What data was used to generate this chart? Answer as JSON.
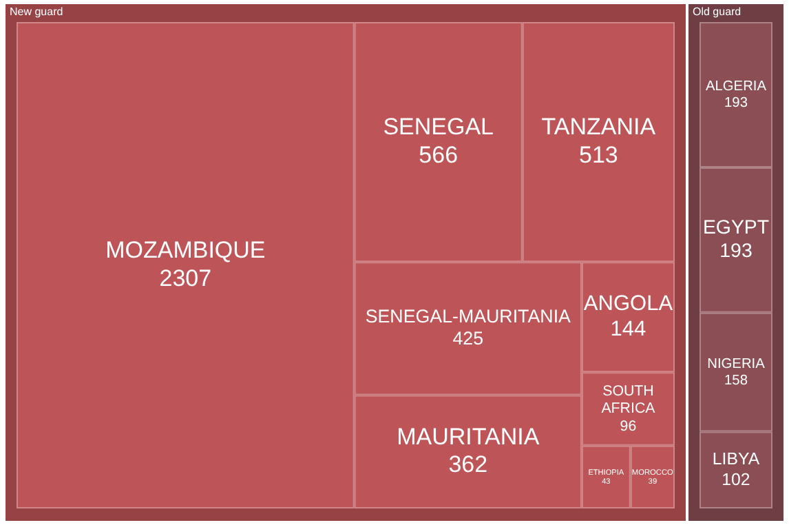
{
  "chart_data": [
    {
      "type": "other",
      "title": "New guard",
      "color": "#bd5457",
      "data_labels": true,
      "categories": [
        "MOZAMBIQUE",
        "SENEGAL",
        "TANZANIA",
        "SENEGAL-MAURITANIA",
        "MAURITANIA",
        "ANGOLA",
        "SOUTH AFRICA",
        "ETHIOPIA",
        "MOROCCO"
      ],
      "values": [
        2307,
        566,
        513,
        425,
        362,
        144,
        96,
        43,
        39
      ]
    },
    {
      "type": "other",
      "title": "Old guard",
      "color": "#8b4e55",
      "data_labels": true,
      "categories": [
        "ALGERIA",
        "EGYPT",
        "NIGERIA",
        "LIBYA"
      ],
      "values": [
        193,
        193,
        158,
        102
      ]
    }
  ]
}
